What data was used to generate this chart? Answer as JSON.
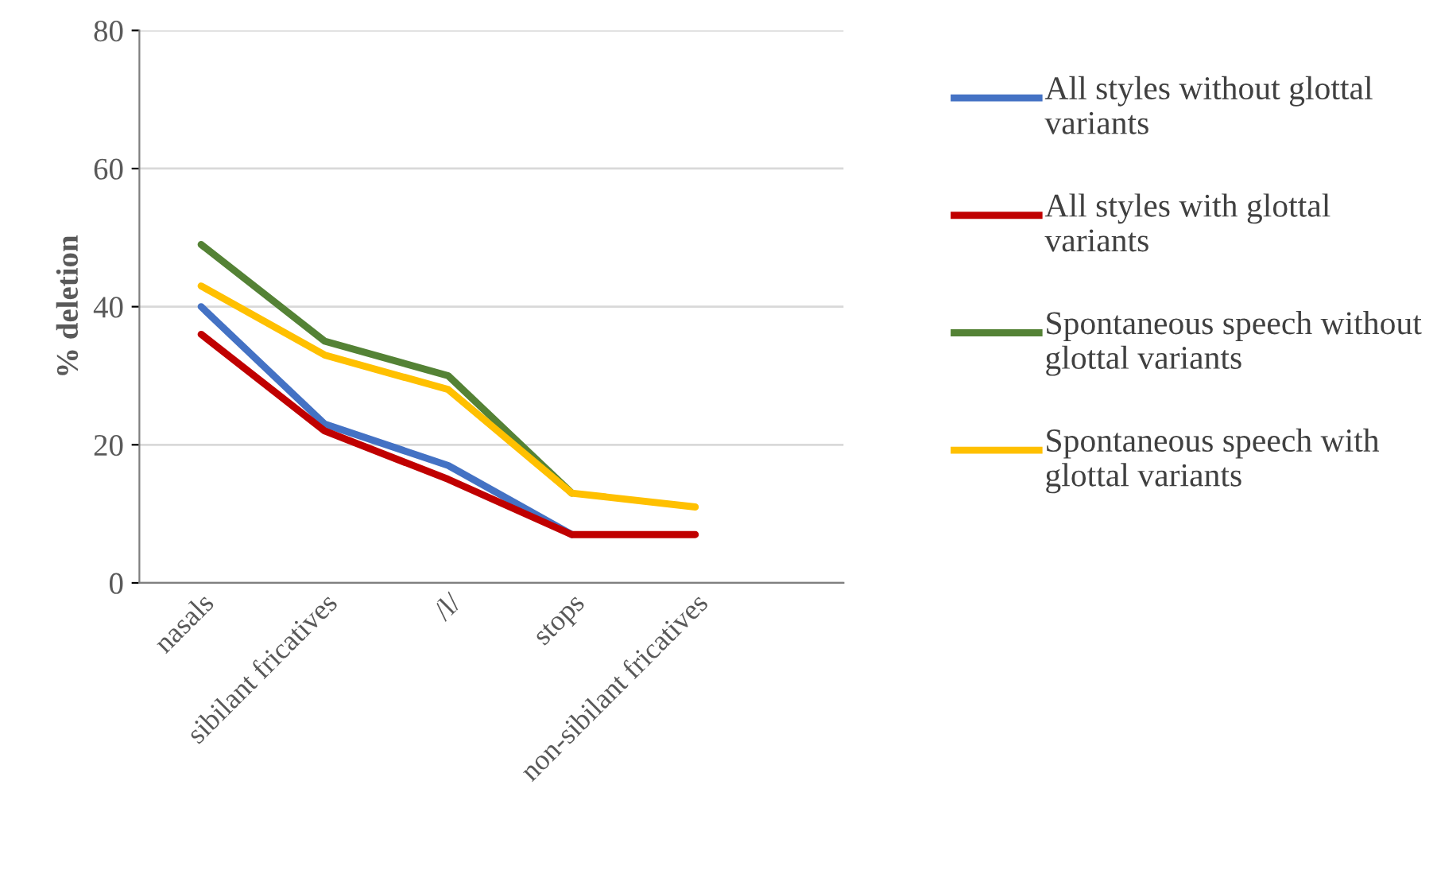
{
  "chart_data": {
    "type": "line",
    "ylabel": "% deletion",
    "categories": [
      "nasals",
      "sibilant fricatives",
      "/l/",
      "stops",
      "non-sibilant fricatives"
    ],
    "ylim": [
      0,
      80
    ],
    "yticks": [
      0,
      20,
      40,
      60,
      80
    ],
    "grid": "y",
    "legend": "right",
    "line_style": "solid",
    "marker": "none",
    "series": [
      {
        "name": "All styles without glottal variants",
        "color": "#4472c4",
        "values": [
          40,
          23,
          17,
          7,
          null
        ]
      },
      {
        "name": "All styles with glottal variants",
        "color": "#c00000",
        "values": [
          36,
          22,
          15,
          7,
          7
        ]
      },
      {
        "name": "Spontaneous speech without glottal variants",
        "color": "#548235",
        "values": [
          49,
          35,
          30,
          13,
          null
        ]
      },
      {
        "name": "Spontaneous speech with glottal variants",
        "color": "#ffc000",
        "values": [
          43,
          33,
          28,
          13,
          11
        ]
      }
    ]
  }
}
